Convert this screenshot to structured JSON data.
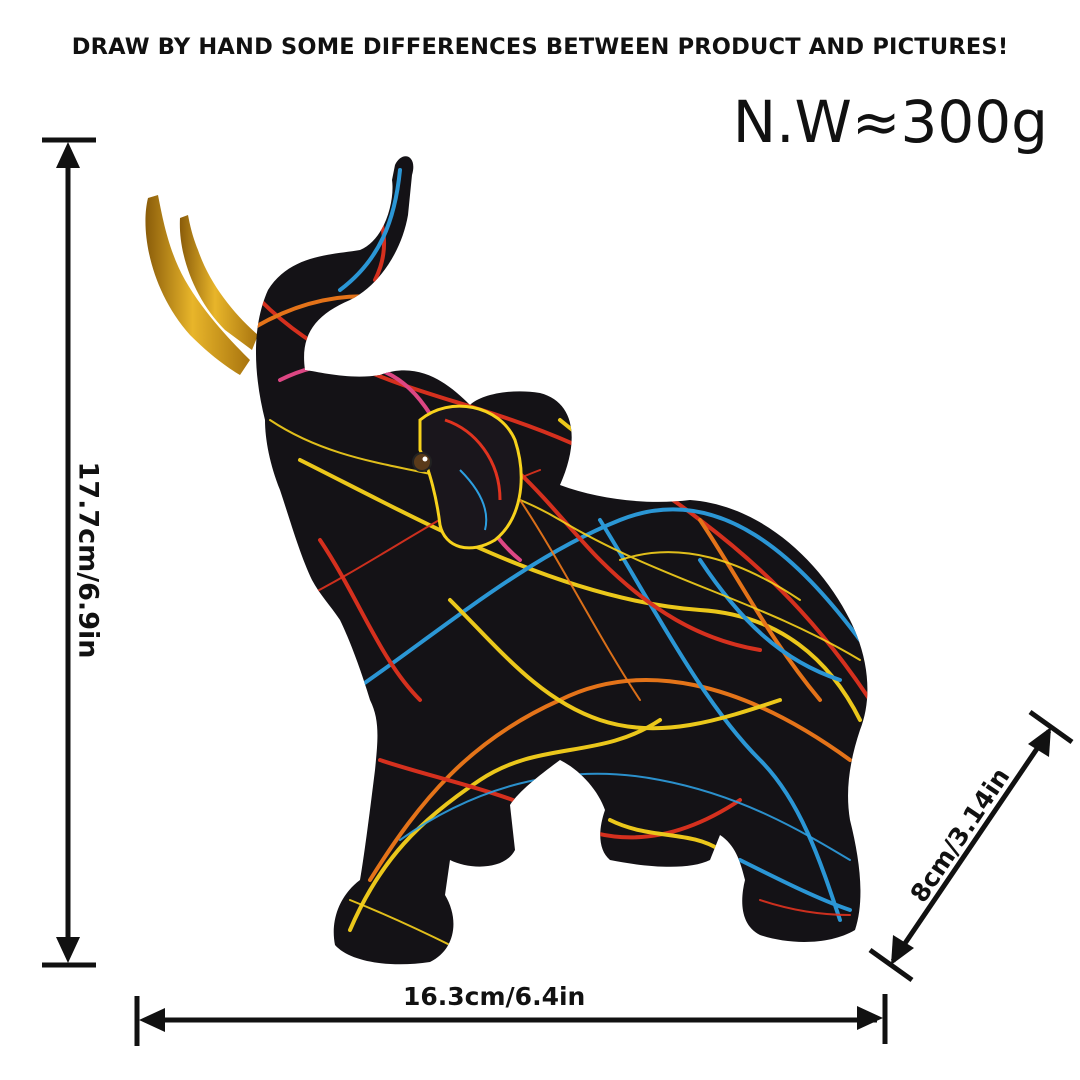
{
  "notice": "DRAW BY HAND SOME DIFFERENCES BETWEEN PRODUCT AND  PICTURES!",
  "net_weight": "N.W≈300g",
  "dimensions": {
    "height": "17.7cm/6.9in",
    "width": "16.3cm/6.4in",
    "depth": "8cm/3.14in"
  },
  "product": {
    "subject": "graffiti-painted elephant figurine",
    "colors": {
      "body": "#141216",
      "tusk": "#d9a520",
      "accent_red": "#e0331f",
      "accent_yellow": "#f7d21c",
      "accent_blue": "#2d9fe0",
      "accent_orange": "#f07a1a"
    }
  }
}
